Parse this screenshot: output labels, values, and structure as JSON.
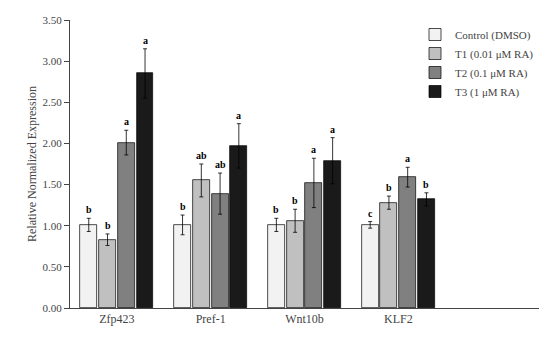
{
  "chart_data": {
    "type": "bar",
    "ylabel": "Relative Normalized Expression",
    "categories": [
      "Zfp423",
      "Pref-1",
      "Wnt10b",
      "KLF2"
    ],
    "series": [
      {
        "name": "Control (DMSO)",
        "color": "#f2f2f2",
        "values": [
          1.01,
          1.01,
          1.01,
          1.01
        ],
        "errors": [
          0.08,
          0.12,
          0.08,
          0.04
        ],
        "letters": [
          "b",
          "b",
          "b",
          "c"
        ]
      },
      {
        "name": "T1 (0.01 μM RA)",
        "color": "#c0c0c0",
        "values": [
          0.83,
          1.55,
          1.06,
          1.28
        ],
        "errors": [
          0.07,
          0.2,
          0.14,
          0.08
        ],
        "letters": [
          "b",
          "ab",
          "b",
          "b"
        ]
      },
      {
        "name": "T2 (0.1 μM RA)",
        "color": "#808080",
        "values": [
          2.01,
          1.39,
          1.52,
          1.59
        ],
        "errors": [
          0.15,
          0.25,
          0.3,
          0.12
        ],
        "letters": [
          "a",
          "ab",
          "a",
          "a"
        ]
      },
      {
        "name": "T3 (1 μM RA)",
        "color": "#1a1a1a",
        "values": [
          2.85,
          1.97,
          1.79,
          1.32
        ],
        "errors": [
          0.3,
          0.27,
          0.28,
          0.08
        ],
        "letters": [
          "a",
          "a",
          "a",
          "b"
        ]
      }
    ],
    "ylim": [
      0.0,
      3.5
    ],
    "yticks": [
      {
        "value": 0.0,
        "label": "0.00"
      },
      {
        "value": 0.5,
        "label": "0.50"
      },
      {
        "value": 1.0,
        "label": "1.00"
      },
      {
        "value": 1.5,
        "label": "1.50"
      },
      {
        "value": 2.0,
        "label": "2.00"
      },
      {
        "value": 2.5,
        "label": "2.50"
      },
      {
        "value": 3.0,
        "label": "3.00"
      },
      {
        "value": 3.5,
        "label": "3.50"
      }
    ],
    "grid": false,
    "legend": "upper right"
  }
}
